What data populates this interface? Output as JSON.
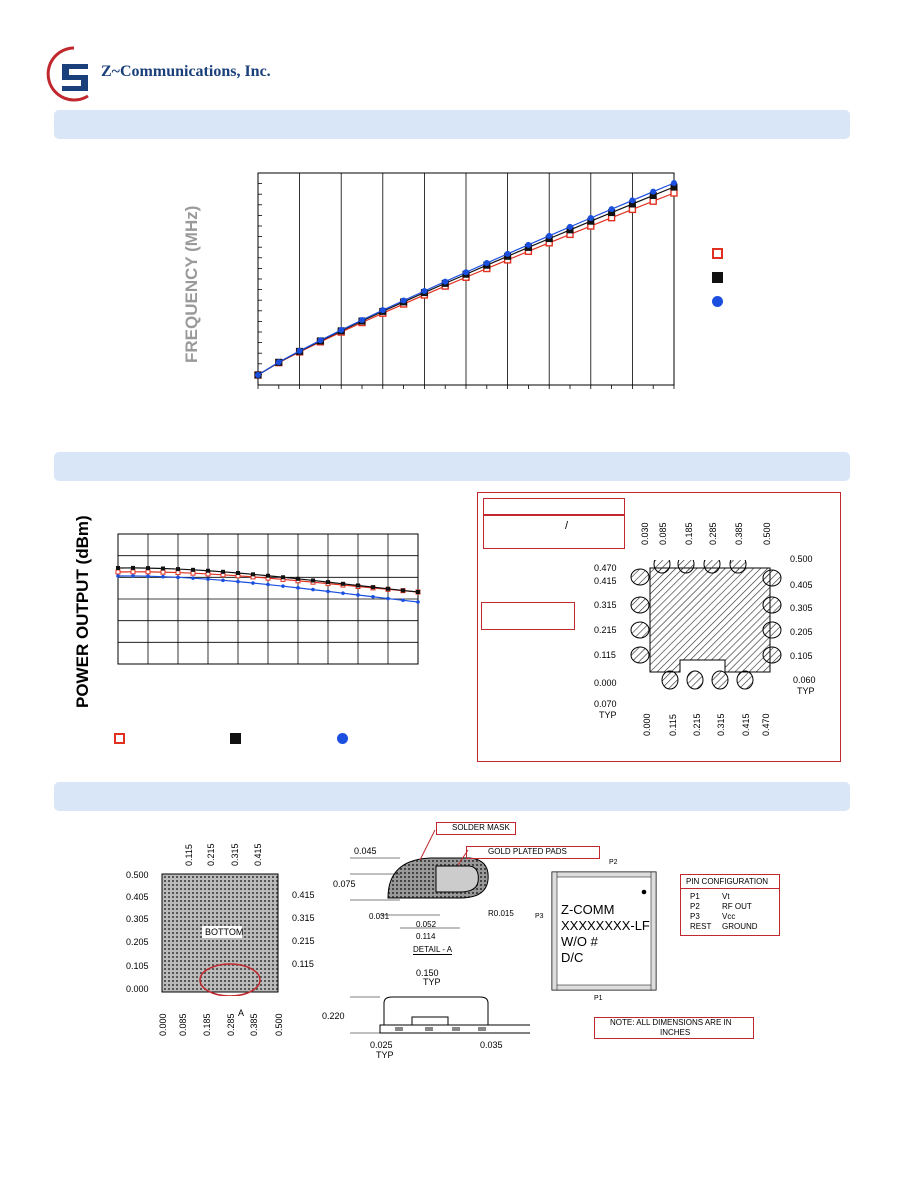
{
  "company": {
    "name": "Z~Communications, Inc."
  },
  "chart1": {
    "ylabel": "FREQUENCY (MHz)"
  },
  "chart2": {
    "ylabel": "POWER OUTPUT (dBm)"
  },
  "pad_layout": {
    "top_labels": [
      "0.030",
      "0.085",
      "0.185",
      "0.285",
      "0.385",
      "0.500"
    ],
    "left_labels": [
      "0.470",
      "0.415",
      "0.315",
      "0.215",
      "0.115",
      "0.000",
      "0.070",
      "TYP"
    ],
    "right_labels": [
      "0.500",
      "0.405",
      "0.305",
      "0.205",
      "0.105",
      "0.060",
      "TYP"
    ],
    "bottom_labels": [
      "0.000",
      "0.115",
      "0.215",
      "0.315",
      "0.415",
      "0.470"
    ],
    "slash": "/"
  },
  "bottom_view": {
    "top_labels": [
      "0.115",
      "0.215",
      "0.315",
      "0.415"
    ],
    "left_labels": [
      "0.500",
      "0.405",
      "0.305",
      "0.205",
      "0.105",
      "0.000"
    ],
    "right_labels": [
      "0.415",
      "0.315",
      "0.215",
      "0.115"
    ],
    "bottom_labels": [
      "0.000",
      "0.085",
      "0.185",
      "0.285",
      "0.385",
      "0.500"
    ],
    "center_label": "BOTTOM",
    "detail_marker": "A"
  },
  "detail": {
    "solder_mask": "SOLDER MASK",
    "gold_pads": "GOLD PLATED PADS",
    "d045": "0.045",
    "d075": "0.075",
    "d031": "0.031",
    "d052": "0.052",
    "d114": "0.114",
    "r015": "R0.015",
    "title": "DETAIL - A"
  },
  "side_view": {
    "d150": "0.150",
    "typ": "TYP",
    "d220": "0.220",
    "d025": "0.025",
    "typ2": "TYP",
    "d035": "0.035"
  },
  "top_view": {
    "p2": "P2",
    "p3": "P3",
    "p1": "P1",
    "line1": "Z-COMM",
    "line2": "XXXXXXXX-LF",
    "line3": "W/O #",
    "line4": "D/C"
  },
  "pin_config": {
    "title": "PIN CONFIGURATION",
    "rows": [
      {
        "pin": "P1",
        "fn": "Vt"
      },
      {
        "pin": "P2",
        "fn": "RF OUT"
      },
      {
        "pin": "P3",
        "fn": "Vcc"
      },
      {
        "pin": "REST",
        "fn": "GROUND"
      }
    ]
  },
  "note": {
    "line1": "NOTE: ALL DIMENSIONS ARE IN",
    "line2": "INCHES"
  },
  "colors": {
    "band": "#d8e6f7",
    "logo_blue": "#1a3f7a",
    "logo_red": "#c0282d",
    "series_red": "#e03020",
    "series_black": "#111111",
    "series_blue": "#1a4fe0"
  }
}
